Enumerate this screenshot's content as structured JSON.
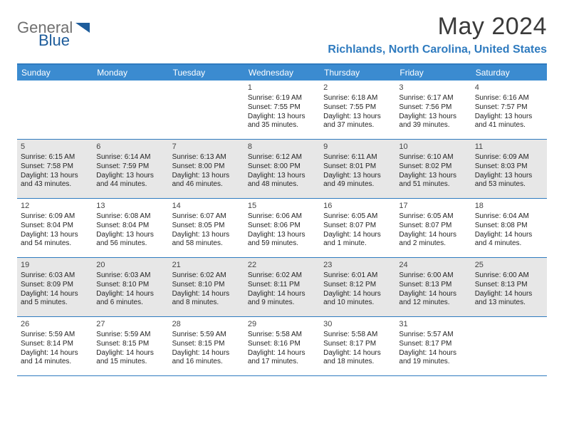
{
  "logo": {
    "text_general": "General",
    "text_blue": "Blue"
  },
  "header": {
    "month_title": "May 2024",
    "location": "Richlands, North Carolina, United States"
  },
  "colors": {
    "brand_blue": "#2f7bbf",
    "header_blue": "#3b8bd0",
    "shade_bg": "#e7e7e7",
    "text": "#252525",
    "logo_gray": "#6f6f6f",
    "logo_blue": "#1d5c9b"
  },
  "weekdays": [
    "Sunday",
    "Monday",
    "Tuesday",
    "Wednesday",
    "Thursday",
    "Friday",
    "Saturday"
  ],
  "weeks": [
    [
      {
        "empty": true
      },
      {
        "empty": true
      },
      {
        "empty": true
      },
      {
        "num": "1",
        "sunrise": "6:19 AM",
        "sunset": "7:55 PM",
        "daylight": "13 hours and 35 minutes."
      },
      {
        "num": "2",
        "sunrise": "6:18 AM",
        "sunset": "7:55 PM",
        "daylight": "13 hours and 37 minutes."
      },
      {
        "num": "3",
        "sunrise": "6:17 AM",
        "sunset": "7:56 PM",
        "daylight": "13 hours and 39 minutes."
      },
      {
        "num": "4",
        "sunrise": "6:16 AM",
        "sunset": "7:57 PM",
        "daylight": "13 hours and 41 minutes."
      }
    ],
    [
      {
        "num": "5",
        "sunrise": "6:15 AM",
        "sunset": "7:58 PM",
        "daylight": "13 hours and 43 minutes."
      },
      {
        "num": "6",
        "sunrise": "6:14 AM",
        "sunset": "7:59 PM",
        "daylight": "13 hours and 44 minutes."
      },
      {
        "num": "7",
        "sunrise": "6:13 AM",
        "sunset": "8:00 PM",
        "daylight": "13 hours and 46 minutes."
      },
      {
        "num": "8",
        "sunrise": "6:12 AM",
        "sunset": "8:00 PM",
        "daylight": "13 hours and 48 minutes."
      },
      {
        "num": "9",
        "sunrise": "6:11 AM",
        "sunset": "8:01 PM",
        "daylight": "13 hours and 49 minutes."
      },
      {
        "num": "10",
        "sunrise": "6:10 AM",
        "sunset": "8:02 PM",
        "daylight": "13 hours and 51 minutes."
      },
      {
        "num": "11",
        "sunrise": "6:09 AM",
        "sunset": "8:03 PM",
        "daylight": "13 hours and 53 minutes."
      }
    ],
    [
      {
        "num": "12",
        "sunrise": "6:09 AM",
        "sunset": "8:04 PM",
        "daylight": "13 hours and 54 minutes."
      },
      {
        "num": "13",
        "sunrise": "6:08 AM",
        "sunset": "8:04 PM",
        "daylight": "13 hours and 56 minutes."
      },
      {
        "num": "14",
        "sunrise": "6:07 AM",
        "sunset": "8:05 PM",
        "daylight": "13 hours and 58 minutes."
      },
      {
        "num": "15",
        "sunrise": "6:06 AM",
        "sunset": "8:06 PM",
        "daylight": "13 hours and 59 minutes."
      },
      {
        "num": "16",
        "sunrise": "6:05 AM",
        "sunset": "8:07 PM",
        "daylight": "14 hours and 1 minute."
      },
      {
        "num": "17",
        "sunrise": "6:05 AM",
        "sunset": "8:07 PM",
        "daylight": "14 hours and 2 minutes."
      },
      {
        "num": "18",
        "sunrise": "6:04 AM",
        "sunset": "8:08 PM",
        "daylight": "14 hours and 4 minutes."
      }
    ],
    [
      {
        "num": "19",
        "sunrise": "6:03 AM",
        "sunset": "8:09 PM",
        "daylight": "14 hours and 5 minutes."
      },
      {
        "num": "20",
        "sunrise": "6:03 AM",
        "sunset": "8:10 PM",
        "daylight": "14 hours and 6 minutes."
      },
      {
        "num": "21",
        "sunrise": "6:02 AM",
        "sunset": "8:10 PM",
        "daylight": "14 hours and 8 minutes."
      },
      {
        "num": "22",
        "sunrise": "6:02 AM",
        "sunset": "8:11 PM",
        "daylight": "14 hours and 9 minutes."
      },
      {
        "num": "23",
        "sunrise": "6:01 AM",
        "sunset": "8:12 PM",
        "daylight": "14 hours and 10 minutes."
      },
      {
        "num": "24",
        "sunrise": "6:00 AM",
        "sunset": "8:13 PM",
        "daylight": "14 hours and 12 minutes."
      },
      {
        "num": "25",
        "sunrise": "6:00 AM",
        "sunset": "8:13 PM",
        "daylight": "14 hours and 13 minutes."
      }
    ],
    [
      {
        "num": "26",
        "sunrise": "5:59 AM",
        "sunset": "8:14 PM",
        "daylight": "14 hours and 14 minutes."
      },
      {
        "num": "27",
        "sunrise": "5:59 AM",
        "sunset": "8:15 PM",
        "daylight": "14 hours and 15 minutes."
      },
      {
        "num": "28",
        "sunrise": "5:59 AM",
        "sunset": "8:15 PM",
        "daylight": "14 hours and 16 minutes."
      },
      {
        "num": "29",
        "sunrise": "5:58 AM",
        "sunset": "8:16 PM",
        "daylight": "14 hours and 17 minutes."
      },
      {
        "num": "30",
        "sunrise": "5:58 AM",
        "sunset": "8:17 PM",
        "daylight": "14 hours and 18 minutes."
      },
      {
        "num": "31",
        "sunrise": "5:57 AM",
        "sunset": "8:17 PM",
        "daylight": "14 hours and 19 minutes."
      },
      {
        "empty": true
      }
    ]
  ],
  "labels": {
    "sunrise_prefix": "Sunrise: ",
    "sunset_prefix": "Sunset: ",
    "daylight_prefix": "Daylight: "
  }
}
